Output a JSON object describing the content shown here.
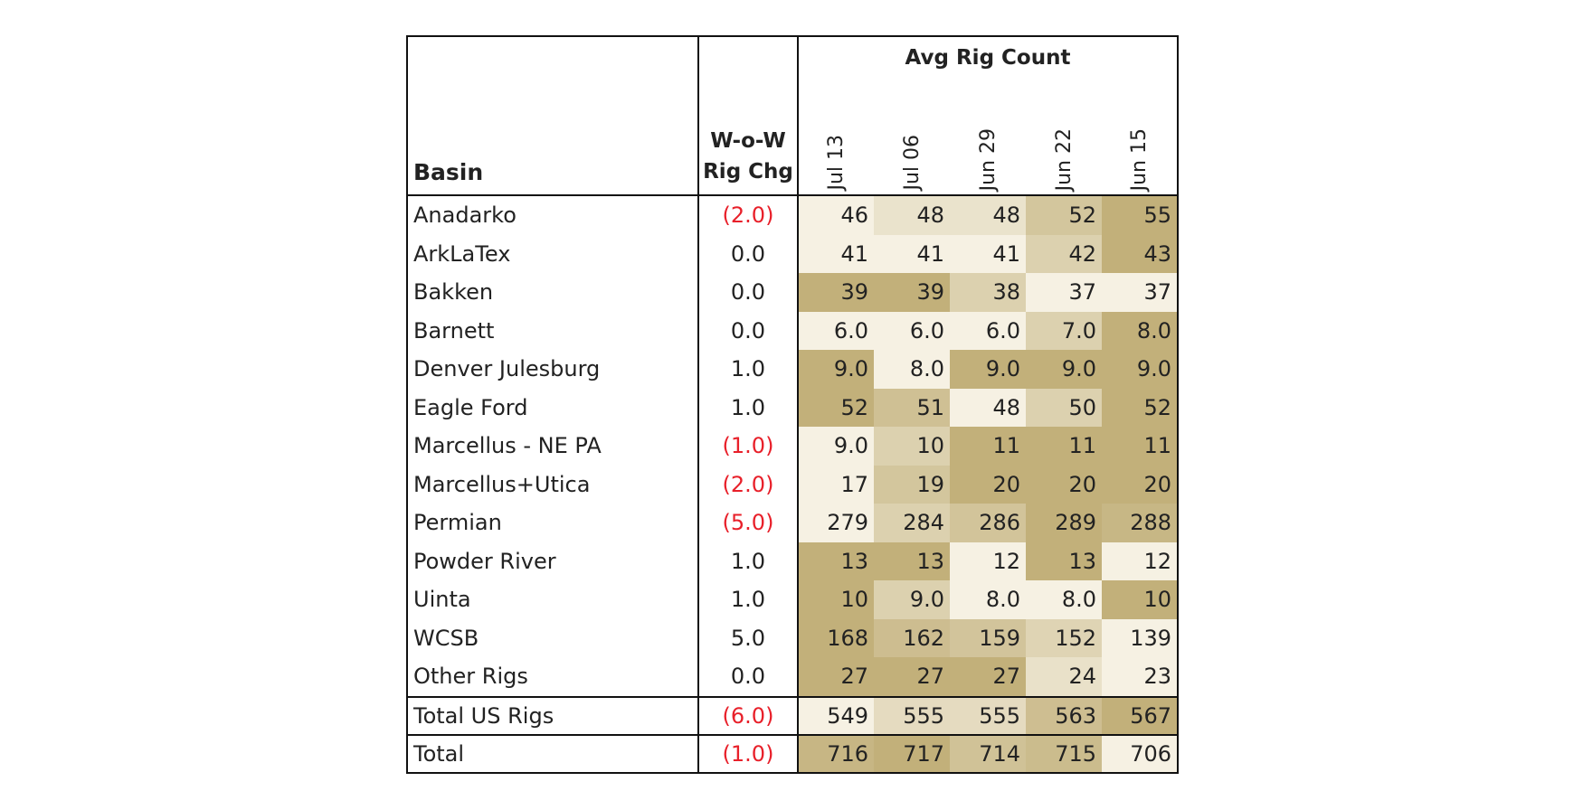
{
  "table": {
    "header_basin": "Basin",
    "header_chg_line1": "W-o-W",
    "header_chg_line2": "Rig Chg",
    "header_group": "Avg Rig Count",
    "dates": [
      "Jul 13",
      "Jul 06",
      "Jun 29",
      "Jun 22",
      "Jun 15"
    ],
    "rows": [
      {
        "basin": "Anadarko",
        "chg": "(2.0)",
        "neg": true,
        "values": [
          "46",
          "48",
          "48",
          "52",
          "55"
        ]
      },
      {
        "basin": "ArkLaTex",
        "chg": "0.0",
        "neg": false,
        "values": [
          "41",
          "41",
          "41",
          "42",
          "43"
        ]
      },
      {
        "basin": "Bakken",
        "chg": "0.0",
        "neg": false,
        "values": [
          "39",
          "39",
          "38",
          "37",
          "37"
        ]
      },
      {
        "basin": "Barnett",
        "chg": "0.0",
        "neg": false,
        "values": [
          "6.0",
          "6.0",
          "6.0",
          "7.0",
          "8.0"
        ]
      },
      {
        "basin": "Denver Julesburg",
        "chg": "1.0",
        "neg": false,
        "values": [
          "9.0",
          "8.0",
          "9.0",
          "9.0",
          "9.0"
        ]
      },
      {
        "basin": "Eagle Ford",
        "chg": "1.0",
        "neg": false,
        "values": [
          "52",
          "51",
          "48",
          "50",
          "52"
        ]
      },
      {
        "basin": "Marcellus - NE PA",
        "chg": "(1.0)",
        "neg": true,
        "values": [
          "9.0",
          "10",
          "11",
          "11",
          "11"
        ]
      },
      {
        "basin": "Marcellus+Utica",
        "chg": "(2.0)",
        "neg": true,
        "values": [
          "17",
          "19",
          "20",
          "20",
          "20"
        ]
      },
      {
        "basin": "Permian",
        "chg": "(5.0)",
        "neg": true,
        "values": [
          "279",
          "284",
          "286",
          "289",
          "288"
        ]
      },
      {
        "basin": "Powder River",
        "chg": "1.0",
        "neg": false,
        "values": [
          "13",
          "13",
          "12",
          "13",
          "12"
        ]
      },
      {
        "basin": "Uinta",
        "chg": "1.0",
        "neg": false,
        "values": [
          "10",
          "9.0",
          "8.0",
          "8.0",
          "10"
        ]
      },
      {
        "basin": "WCSB",
        "chg": "5.0",
        "neg": false,
        "values": [
          "168",
          "162",
          "159",
          "152",
          "139"
        ]
      },
      {
        "basin": "Other Rigs",
        "chg": "0.0",
        "neg": false,
        "values": [
          "27",
          "27",
          "27",
          "24",
          "23"
        ]
      }
    ],
    "totals": [
      {
        "basin": "Total US Rigs",
        "chg": "(6.0)",
        "neg": true,
        "values": [
          "549",
          "555",
          "555",
          "563",
          "567"
        ]
      },
      {
        "basin": "Total",
        "chg": "(1.0)",
        "neg": true,
        "values": [
          "716",
          "717",
          "714",
          "715",
          "706"
        ]
      }
    ]
  },
  "colors": {
    "negative_text": "#e8202a",
    "heat_low": "#f6f1e3",
    "heat_high": "#c2b07a"
  }
}
